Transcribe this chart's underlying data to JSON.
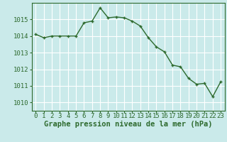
{
  "x": [
    0,
    1,
    2,
    3,
    4,
    5,
    6,
    7,
    8,
    9,
    10,
    11,
    12,
    13,
    14,
    15,
    16,
    17,
    18,
    19,
    20,
    21,
    22,
    23
  ],
  "y": [
    1014.1,
    1013.9,
    1014.0,
    1014.0,
    1014.0,
    1014.0,
    1014.8,
    1014.9,
    1015.7,
    1015.1,
    1015.15,
    1015.1,
    1014.9,
    1014.6,
    1013.9,
    1013.35,
    1013.05,
    1012.25,
    1012.15,
    1011.45,
    1011.1,
    1011.15,
    1010.35,
    1011.25
  ],
  "line_color": "#2d6a2d",
  "marker": "+",
  "marker_color": "#2d6a2d",
  "bg_color": "#caeaea",
  "grid_color": "#ffffff",
  "xlabel": "Graphe pression niveau de la mer (hPa)",
  "xlim": [
    -0.5,
    23.5
  ],
  "ylim": [
    1009.5,
    1016.0
  ],
  "yticks": [
    1010,
    1011,
    1012,
    1013,
    1014,
    1015
  ],
  "xticks": [
    0,
    1,
    2,
    3,
    4,
    5,
    6,
    7,
    8,
    9,
    10,
    11,
    12,
    13,
    14,
    15,
    16,
    17,
    18,
    19,
    20,
    21,
    22,
    23
  ],
  "tick_label_color": "#2d6a2d",
  "xlabel_color": "#2d6a2d",
  "xlabel_fontsize": 7.5,
  "tick_fontsize": 6.5,
  "line_width": 1.0,
  "marker_size": 3.5
}
